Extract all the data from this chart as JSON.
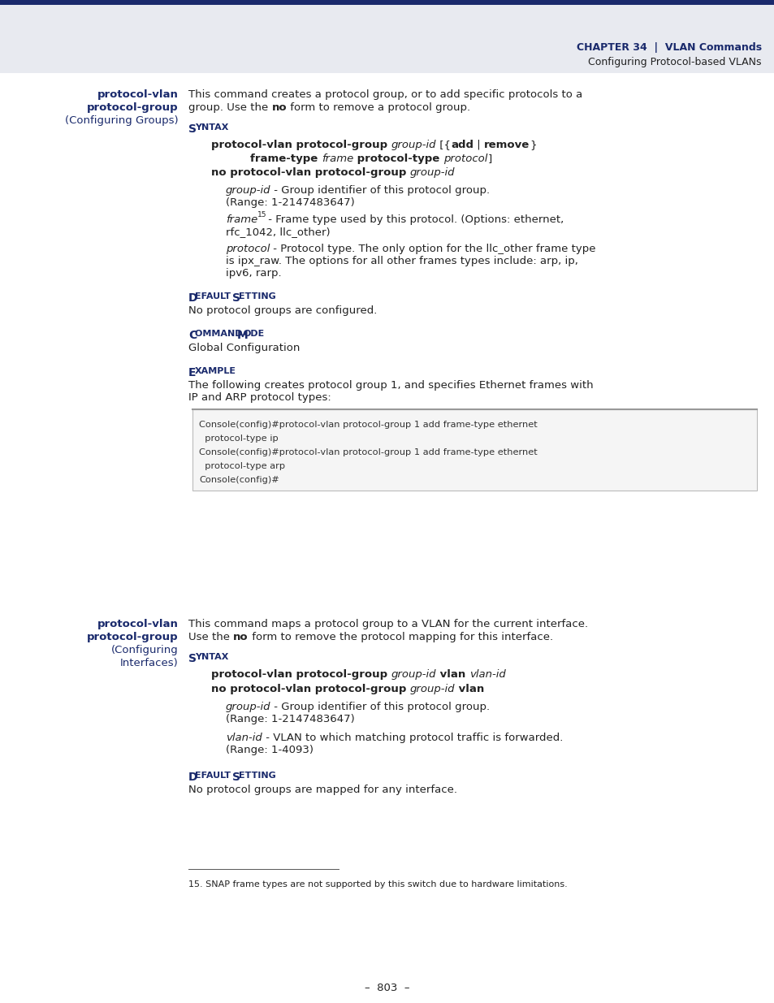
{
  "header_bg": "#e8eaf0",
  "header_line_color": "#1a2a6c",
  "header_chapter": "CHAPTER 34  |  VLAN Commands",
  "header_subtext": "Configuring Protocol-based VLANs",
  "header_text_color": "#1a2a6c",
  "header_sub_color": "#333333",
  "bg_color": "#ffffff",
  "page_number": "–  803  –",
  "dark_blue": "#1a2a6c",
  "body_text_color": "#222222",
  "code_bg": "#f5f5f5",
  "code_border": "#bbbbbb",
  "section1": {
    "left_title_lines": [
      "protocol-vlan",
      "protocol-group",
      "(Configuring Groups)"
    ],
    "code_lines": [
      "Console(config)#protocol-vlan protocol-group 1 add frame-type ethernet",
      "  protocol-type ip",
      "Console(config)#protocol-vlan protocol-group 1 add frame-type ethernet",
      "  protocol-type arp",
      "Console(config)#"
    ]
  },
  "section2": {
    "left_title_lines": [
      "protocol-vlan",
      "protocol-group",
      "(Configuring",
      "Interfaces)"
    ]
  },
  "footnote": "15. SNAP frame types are not supported by this switch due to hardware limitations."
}
